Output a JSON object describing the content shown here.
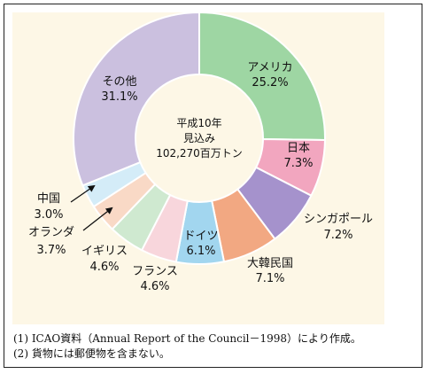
{
  "chart_data": {
    "type": "pie",
    "donut": true,
    "center_text": [
      "平成10年",
      "見込み",
      "102,270百万トン"
    ],
    "slices": [
      {
        "label": "アメリカ",
        "percent": "25.2%",
        "value": 25.2,
        "color": "#9ed6a3"
      },
      {
        "label": "日本",
        "percent": "7.3%",
        "value": 7.3,
        "color": "#f2a6bf"
      },
      {
        "label": "シンガポール",
        "percent": "7.2%",
        "value": 7.2,
        "color": "#a592cc"
      },
      {
        "label": "大韓民国",
        "percent": "7.1%",
        "value": 7.1,
        "color": "#f2a882"
      },
      {
        "label": "ドイツ",
        "percent": "6.1%",
        "value": 6.1,
        "color": "#a2d6ef"
      },
      {
        "label": "フランス",
        "percent": "4.6%",
        "value": 4.6,
        "color": "#f8d6dc"
      },
      {
        "label": "イギリス",
        "percent": "4.6%",
        "value": 4.6,
        "color": "#cfe9d0"
      },
      {
        "label": "オランダ",
        "percent": "3.7%",
        "value": 3.7,
        "color": "#f9d9c6"
      },
      {
        "label": "中国",
        "percent": "3.0%",
        "value": 3.0,
        "color": "#d4ecf8"
      },
      {
        "label": "その他",
        "percent": "31.1%",
        "value": 31.1,
        "color": "#cbc0df"
      }
    ]
  },
  "notes": [
    "(1) ICAO資料（Annual Report of the Council－1998）により作成。",
    "(2) 貨物には郵便物を含まない。"
  ]
}
